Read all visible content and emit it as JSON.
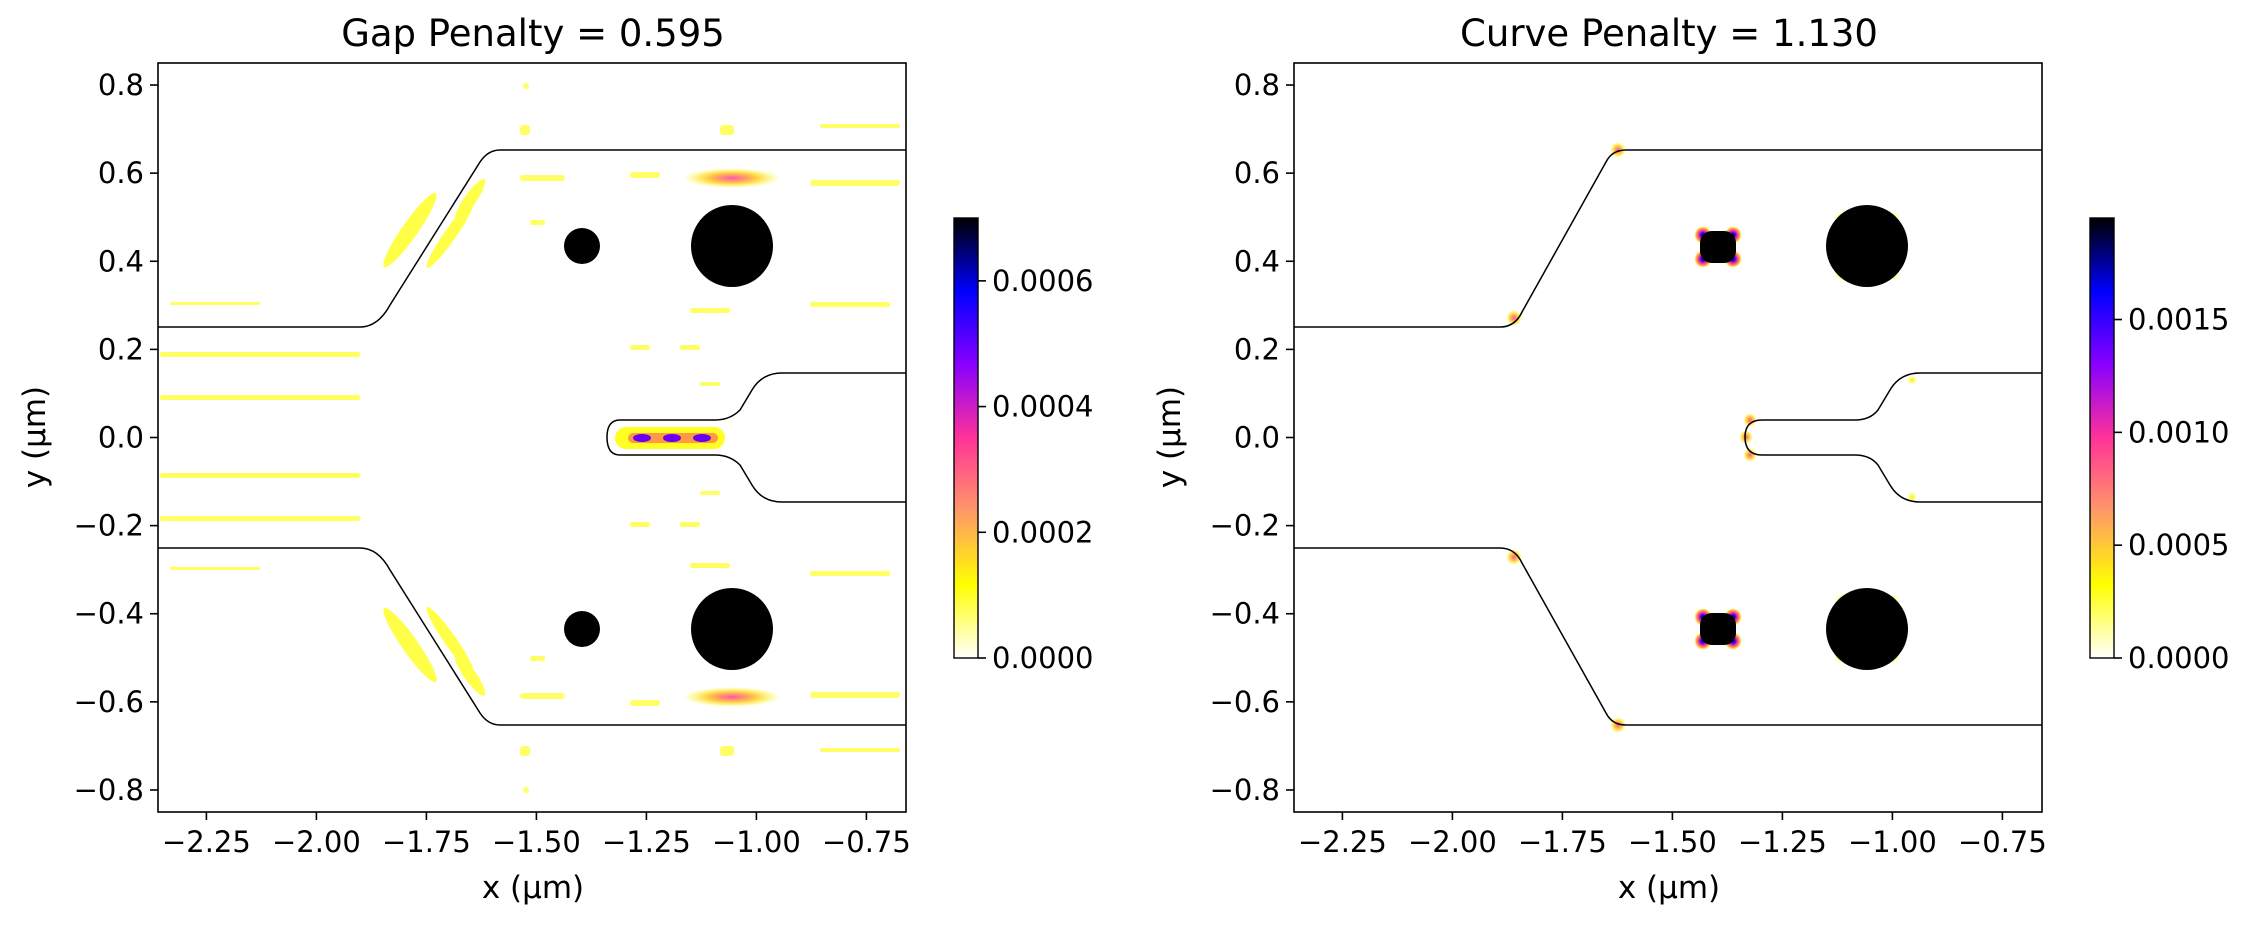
{
  "figure": {
    "colormap": "gnuplot2_r",
    "colorbar_gradient": [
      "#ffffff",
      "#ffff00",
      "#ff9966",
      "#ff3399",
      "#8800ff",
      "#0000ff",
      "#000000"
    ]
  },
  "chart_data": [
    {
      "type": "heatmap",
      "title": "Gap Penalty = 0.595",
      "xlabel": "x (μm)",
      "ylabel": "y (μm)",
      "xlim": [
        -2.36,
        -0.66
      ],
      "ylim": [
        -0.85,
        0.85
      ],
      "xticks": [
        -2.25,
        -2.0,
        -1.75,
        -1.5,
        -1.25,
        -1.0,
        -0.75
      ],
      "xtick_labels": [
        "−2.25",
        "−2.00",
        "−1.75",
        "−1.50",
        "−1.25",
        "−1.00",
        "−0.75"
      ],
      "yticks": [
        0.8,
        0.6,
        0.4,
        0.2,
        0.0,
        -0.2,
        -0.4,
        -0.6,
        -0.8
      ],
      "ytick_labels": [
        "0.8",
        "0.6",
        "0.4",
        "0.2",
        "0.0",
        "−0.2",
        "−0.4",
        "−0.6",
        "−0.8"
      ],
      "colorbar": {
        "min": 0.0,
        "max": 0.0007,
        "ticks": [
          0.0,
          0.0002,
          0.0004,
          0.0006
        ],
        "tick_labels": [
          "0.0000",
          "0.0002",
          "0.0004",
          "0.0006"
        ]
      },
      "hotspots": [
        {
          "x": -1.385,
          "y": 0.44,
          "value": 0.00045
        },
        {
          "x": -1.385,
          "y": -0.44,
          "value": 0.00045
        },
        {
          "x": -1.2,
          "y": 0.0,
          "value": 0.0003
        },
        {
          "x": -1.05,
          "y": 0.59,
          "value": 0.00025
        },
        {
          "x": -1.05,
          "y": -0.59,
          "value": 0.00025
        }
      ]
    },
    {
      "type": "heatmap",
      "title": "Curve Penalty = 1.130",
      "xlabel": "x (μm)",
      "ylabel": "y (μm)",
      "xlim": [
        -2.36,
        -0.66
      ],
      "ylim": [
        -0.85,
        0.85
      ],
      "xticks": [
        -2.25,
        -2.0,
        -1.75,
        -1.5,
        -1.25,
        -1.0,
        -0.75
      ],
      "xtick_labels": [
        "−2.25",
        "−2.00",
        "−1.75",
        "−1.50",
        "−1.25",
        "−1.00",
        "−0.75"
      ],
      "yticks": [
        0.8,
        0.6,
        0.4,
        0.2,
        0.0,
        -0.2,
        -0.4,
        -0.6,
        -0.8
      ],
      "ytick_labels": [
        "0.8",
        "0.6",
        "0.4",
        "0.2",
        "0.0",
        "−0.2",
        "−0.4",
        "−0.6",
        "−0.8"
      ],
      "colorbar": {
        "min": 0.0,
        "max": 0.00195,
        "ticks": [
          0.0,
          0.0005,
          0.001,
          0.0015
        ],
        "tick_labels": [
          "0.0000",
          "0.0005",
          "0.0010",
          "0.0015"
        ]
      },
      "hotspots": [
        {
          "x": -1.385,
          "y": 0.44,
          "value": 0.0018
        },
        {
          "x": -1.385,
          "y": -0.44,
          "value": 0.0018
        },
        {
          "x": -1.32,
          "y": 0.0,
          "value": 0.0009
        },
        {
          "x": -1.61,
          "y": 0.65,
          "value": 0.0007
        },
        {
          "x": -1.61,
          "y": -0.65,
          "value": 0.0007
        },
        {
          "x": -1.85,
          "y": 0.27,
          "value": 0.0005
        },
        {
          "x": -1.85,
          "y": -0.27,
          "value": 0.0005
        }
      ]
    }
  ]
}
